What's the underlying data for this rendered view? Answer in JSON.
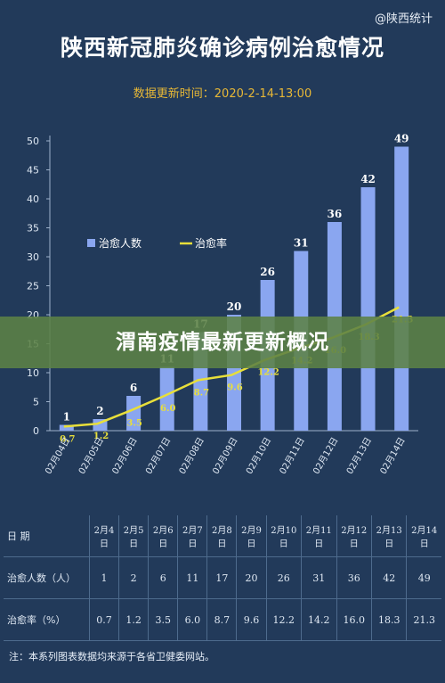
{
  "source": "@陕西统计",
  "title": "陕西新冠肺炎确诊病例治愈情况",
  "subtitle": "数据更新时间：2020-2-14-13:00",
  "overlay_text": "渭南疫情最新更新概况",
  "chart_data": {
    "type": "bar",
    "categories": [
      "02月04日",
      "02月05日",
      "02月06日",
      "02月07日",
      "02月08日",
      "02月09日",
      "02月10日",
      "02月11日",
      "02月12日",
      "02月13日",
      "02月14日"
    ],
    "series": [
      {
        "name": "治愈人数",
        "type": "bar",
        "values": [
          1,
          2,
          6,
          11,
          17,
          20,
          26,
          31,
          36,
          42,
          49
        ]
      },
      {
        "name": "治愈率",
        "type": "line",
        "values": [
          0.7,
          1.2,
          3.5,
          6.0,
          8.7,
          9.6,
          12.2,
          14.2,
          16.0,
          18.3,
          21.3
        ]
      }
    ],
    "yticks": [
      0,
      5,
      10,
      15,
      20,
      25,
      30,
      35,
      40,
      45,
      50
    ],
    "ylim": [
      0,
      50
    ],
    "legend_position": "top-left",
    "colors": {
      "bar": "#8aa6f0",
      "line": "#e8df3a",
      "bar_label": "#ffffff",
      "line_label": "#e8df3a"
    }
  },
  "table": {
    "header": [
      "日 期",
      "2月4日",
      "2月5日",
      "2月6日",
      "2月7日",
      "2月8日",
      "2月9日",
      "2月10日",
      "2月11日",
      "2月12日",
      "2月13日",
      "2月14日"
    ],
    "rows": [
      [
        "治愈人数（人）",
        "1",
        "2",
        "6",
        "11",
        "17",
        "20",
        "26",
        "31",
        "36",
        "42",
        "49"
      ],
      [
        "治愈率（%）",
        "0.7",
        "1.2",
        "3.5",
        "6.0",
        "8.7",
        "9.6",
        "12.2",
        "14.2",
        "16.0",
        "18.3",
        "21.3"
      ]
    ]
  },
  "note": "注：本系列图表数据均来源于各省卫健委网站。"
}
